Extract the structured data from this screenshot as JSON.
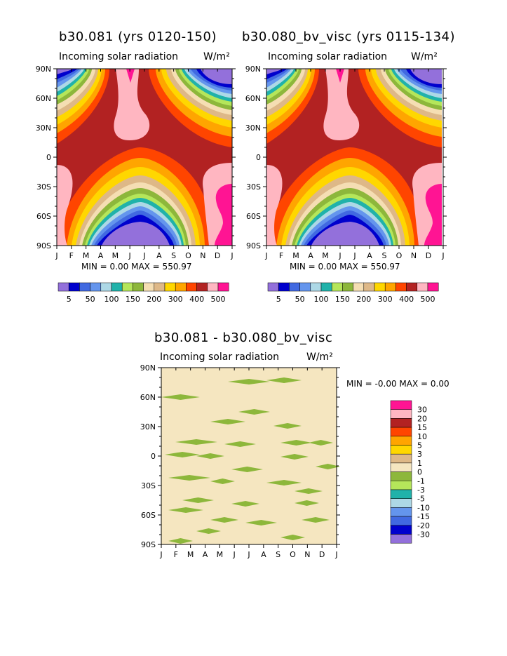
{
  "chart_data": [
    {
      "type": "heatmap",
      "title": "b30.081 (yrs 0120-150)",
      "subtitle": "Incoming solar radiation",
      "units": "W/m²",
      "x_tick_labels": [
        "J",
        "F",
        "M",
        "A",
        "M",
        "J",
        "J",
        "A",
        "S",
        "O",
        "N",
        "D",
        "J"
      ],
      "y_tick_labels": [
        "90N",
        "60N",
        "30N",
        "0",
        "30S",
        "60S",
        "90S"
      ],
      "min_max_text": "MIN =    0.00 MAX = 550.97",
      "colorbar": {
        "colors": [
          "#9370db",
          "#0000cd",
          "#4169e1",
          "#6495ed",
          "#add8e6",
          "#20b2aa",
          "#b5e65a",
          "#8db73b",
          "#f5deb3",
          "#deb887",
          "#ffd700",
          "#ffa500",
          "#ff4500",
          "#b22222",
          "#ffb6c1",
          "#ff1493"
        ],
        "labels": [
          "5",
          "50",
          "100",
          "150",
          "200",
          "300",
          "400",
          "500"
        ]
      }
    },
    {
      "type": "heatmap",
      "title": "b30.080_bv_visc (yrs 0115-134)",
      "subtitle": "Incoming solar radiation",
      "units": "W/m²",
      "x_tick_labels": [
        "J",
        "F",
        "M",
        "A",
        "M",
        "J",
        "J",
        "A",
        "S",
        "O",
        "N",
        "D",
        "J"
      ],
      "y_tick_labels": [
        "90N",
        "60N",
        "30N",
        "0",
        "30S",
        "60S",
        "90S"
      ],
      "min_max_text": "MIN =    0.00 MAX = 550.97",
      "colorbar": {
        "colors": [
          "#9370db",
          "#0000cd",
          "#4169e1",
          "#6495ed",
          "#add8e6",
          "#20b2aa",
          "#b5e65a",
          "#8db73b",
          "#f5deb3",
          "#deb887",
          "#ffd700",
          "#ffa500",
          "#ff4500",
          "#b22222",
          "#ffb6c1",
          "#ff1493"
        ],
        "labels": [
          "5",
          "50",
          "100",
          "150",
          "200",
          "300",
          "400",
          "500"
        ]
      }
    },
    {
      "type": "heatmap",
      "title": "b30.081 - b30.080_bv_visc",
      "subtitle": "Incoming solar radiation",
      "units": "W/m²",
      "x_tick_labels": [
        "J",
        "F",
        "M",
        "A",
        "M",
        "J",
        "J",
        "A",
        "S",
        "O",
        "N",
        "D",
        "J"
      ],
      "y_tick_labels": [
        "90N",
        "60N",
        "30N",
        "0",
        "30S",
        "60S",
        "90S"
      ],
      "min_max_text": "MIN =   -0.00 MAX =    0.00",
      "colorbar": {
        "colors": [
          "#ff1493",
          "#ffb6c1",
          "#b22222",
          "#ff4500",
          "#ffa500",
          "#ffd700",
          "#deb887",
          "#f5e6c0",
          "#8db73b",
          "#b5e65a",
          "#20b2aa",
          "#add8e6",
          "#6495ed",
          "#4169e1",
          "#0000cd",
          "#9370db"
        ],
        "labels": [
          "30",
          "20",
          "15",
          "10",
          "5",
          "3",
          "1",
          "0",
          "-1",
          "-3",
          "-5",
          "-10",
          "-15",
          "-20",
          "-30"
        ]
      }
    }
  ]
}
